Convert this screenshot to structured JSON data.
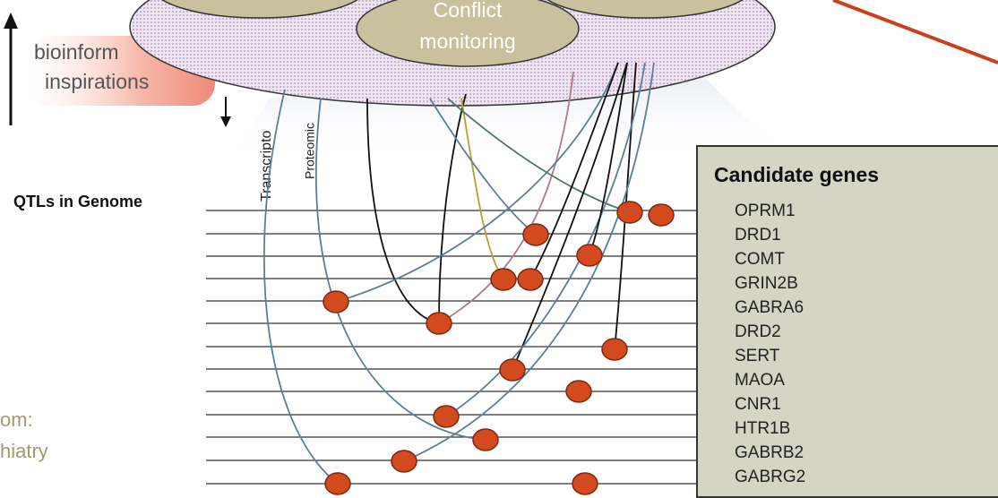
{
  "top": {
    "ellipse_label": [
      "Conflict",
      "monitoring"
    ]
  },
  "left": {
    "arrow_label": [
      "bioinform",
      "inspirations"
    ],
    "footer": [
      "om:",
      "hiatry"
    ]
  },
  "axis_labels": [
    "Transcripto",
    "Proteomic"
  ],
  "genome_label": "QTLs in Genome",
  "candidate_genes": {
    "title": "Candidate genes",
    "genes": [
      "OPRM1",
      "DRD1",
      "COMT",
      "GRIN2B",
      "GABRA6",
      "DRD2",
      "SERT",
      "MAOA",
      "CNR1",
      "HTR1B",
      "GABRB2",
      "GABRG2"
    ]
  }
}
